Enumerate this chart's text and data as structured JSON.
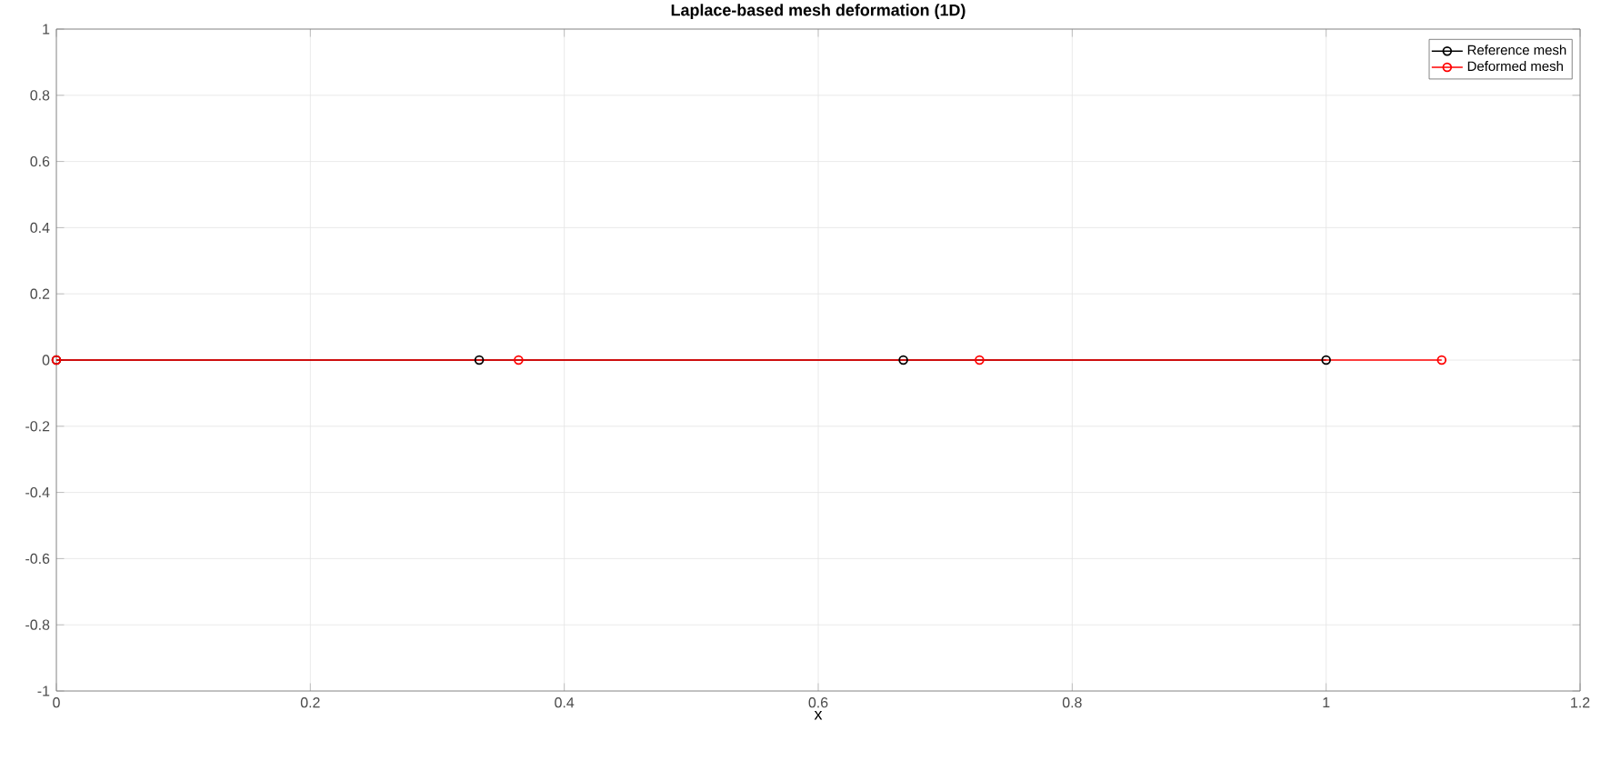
{
  "chart_data": {
    "type": "line",
    "title": "Laplace-based mesh deformation (1D)",
    "xlabel": "x",
    "series": [
      {
        "name": "Reference mesh",
        "color": "#000000",
        "x": [
          0,
          0.333,
          0.667,
          1
        ],
        "values": [
          0,
          0,
          0,
          0
        ]
      },
      {
        "name": "Deformed mesh",
        "color": "#ff0000",
        "x": [
          0,
          0.364,
          0.727,
          1.091
        ],
        "values": [
          0,
          0,
          0,
          0
        ]
      }
    ],
    "marker": "circle",
    "line_style": "solid",
    "grid": true,
    "legend": "top right",
    "xlim": [
      0,
      1.2
    ],
    "xticks": [
      0,
      0.2,
      0.4,
      0.6,
      0.8,
      1,
      1.2
    ],
    "ylim": [
      -1,
      1
    ],
    "yticks": [
      -1,
      -0.8,
      -0.6,
      -0.4,
      -0.2,
      0,
      0.2,
      0.4,
      0.6,
      0.8,
      1
    ]
  }
}
